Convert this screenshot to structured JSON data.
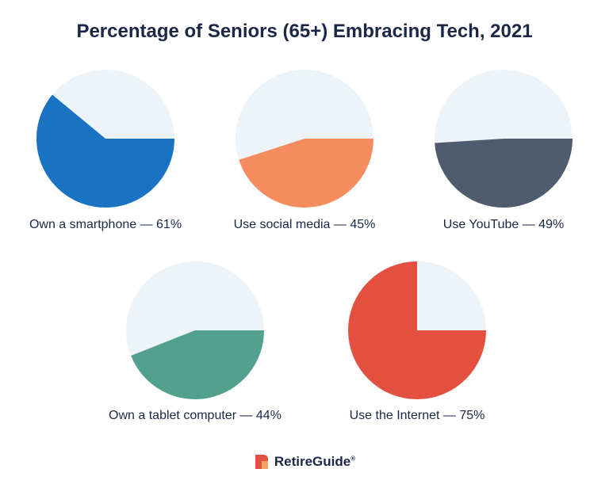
{
  "title": "Percentage of Seniors (65+) Embracing Tech, 2021",
  "brand": {
    "name": "RetireGuide",
    "mark": "®"
  },
  "colors": {
    "background_slice": "#ecf3f9",
    "title": "#1b2747"
  },
  "chart_data": [
    {
      "type": "pie",
      "label": "Own a smartphone — 61%",
      "value": 61,
      "color": "#1a72c3"
    },
    {
      "type": "pie",
      "label": "Use social media — 45%",
      "value": 45,
      "color": "#f58c5e"
    },
    {
      "type": "pie",
      "label": "Use YouTube — 49%",
      "value": 49,
      "color": "#4f5c6e"
    },
    {
      "type": "pie",
      "label": "Own a tablet computer — 44%",
      "value": 44,
      "color": "#52a08e"
    },
    {
      "type": "pie",
      "label": "Use the Internet — 75%",
      "value": 75,
      "color": "#e35040"
    }
  ]
}
